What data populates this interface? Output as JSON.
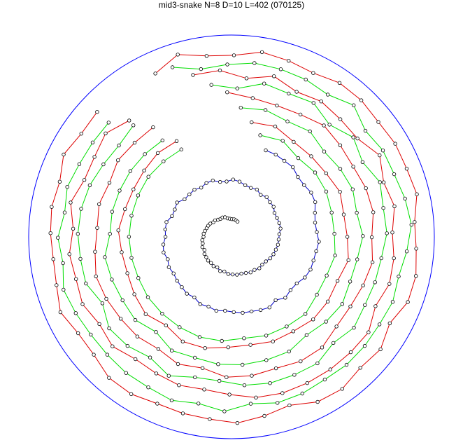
{
  "title": "mid3-snake N=8 D=10 L=402 (070125)",
  "colors": {
    "boundary": "#0000ff",
    "inner_snake": "#0000cc",
    "green_path": "#00dd00",
    "red_path": "#dd0000",
    "marker_edge": "#000000"
  }
}
